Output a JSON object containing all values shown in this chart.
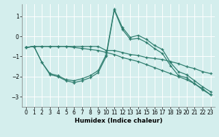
{
  "xlabel": "Humidex (Indice chaleur)",
  "bg_color": "#d4eeed",
  "line_color": "#2e7d6e",
  "grid_color": "#ffffff",
  "xlim": [
    -0.5,
    23.5
  ],
  "ylim": [
    -3.5,
    1.6
  ],
  "yticks": [
    -3,
    -2,
    -1,
    0,
    1
  ],
  "xticks": [
    0,
    1,
    2,
    3,
    4,
    5,
    6,
    7,
    8,
    9,
    10,
    11,
    12,
    13,
    14,
    15,
    16,
    17,
    18,
    19,
    20,
    21,
    22,
    23
  ],
  "line1_x": [
    0,
    1,
    2,
    3,
    4,
    5,
    6,
    7,
    8,
    9,
    10,
    11,
    12,
    13,
    14,
    15,
    16,
    17,
    18,
    19,
    20,
    21,
    22,
    23
  ],
  "line1_y": [
    -0.55,
    -0.5,
    -0.5,
    -0.5,
    -0.5,
    -0.5,
    -0.5,
    -0.5,
    -0.5,
    -0.5,
    -0.7,
    -0.7,
    -0.8,
    -0.9,
    -0.95,
    -1.05,
    -1.1,
    -1.15,
    -1.25,
    -1.35,
    -1.5,
    -1.6,
    -1.75,
    -1.85
  ],
  "line2_x": [
    0,
    1,
    2,
    3,
    4,
    5,
    6,
    7,
    8,
    9,
    10,
    11,
    12,
    13,
    14,
    15,
    16,
    17,
    18,
    19,
    20,
    21,
    22,
    23
  ],
  "line2_y": [
    -0.55,
    -0.5,
    -1.3,
    -1.85,
    -1.95,
    -2.15,
    -2.2,
    -2.1,
    -1.95,
    -1.7,
    -0.9,
    1.35,
    0.45,
    -0.05,
    0.05,
    -0.15,
    -0.45,
    -0.65,
    -1.3,
    -1.75,
    -1.9,
    -2.2,
    -2.5,
    -2.75
  ],
  "line3_x": [
    0,
    1,
    2,
    3,
    4,
    5,
    6,
    7,
    8,
    9,
    10,
    11,
    12,
    13,
    14,
    15,
    16,
    17,
    18,
    19,
    20,
    21,
    22,
    23
  ],
  "line3_y": [
    -0.55,
    -0.5,
    -1.3,
    -1.9,
    -2.0,
    -2.2,
    -2.3,
    -2.2,
    -2.05,
    -1.8,
    -1.0,
    1.3,
    0.35,
    -0.15,
    -0.1,
    -0.3,
    -0.6,
    -0.85,
    -1.45,
    -1.95,
    -2.05,
    -2.35,
    -2.65,
    -2.9
  ],
  "line4_x": [
    0,
    1,
    2,
    3,
    4,
    5,
    6,
    7,
    8,
    9,
    10,
    11,
    12,
    13,
    14,
    15,
    16,
    17,
    18,
    19,
    20,
    21,
    22,
    23
  ],
  "line4_y": [
    -0.55,
    -0.5,
    -0.5,
    -0.5,
    -0.5,
    -0.5,
    -0.55,
    -0.6,
    -0.65,
    -0.7,
    -0.8,
    -0.9,
    -1.05,
    -1.15,
    -1.25,
    -1.4,
    -1.55,
    -1.7,
    -1.85,
    -2.0,
    -2.15,
    -2.35,
    -2.6,
    -2.9
  ]
}
